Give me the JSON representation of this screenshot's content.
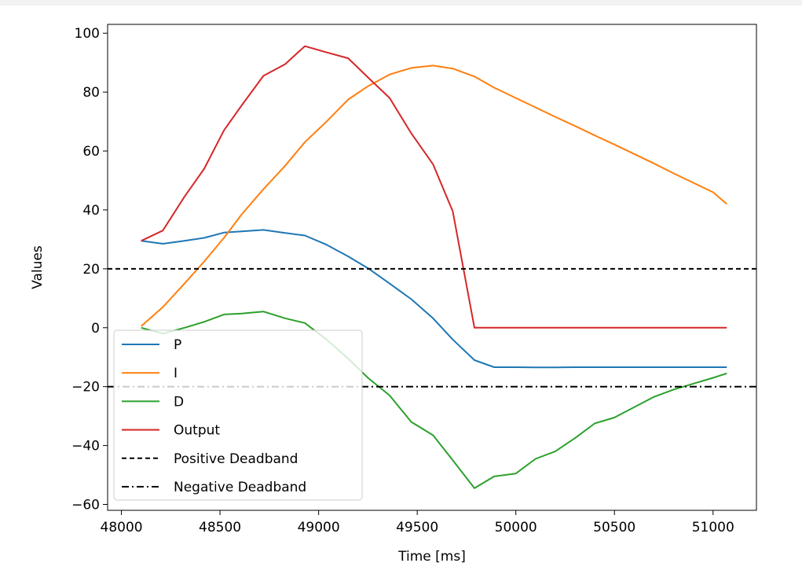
{
  "chart_data": {
    "type": "line",
    "title": "",
    "xlabel": "Time [ms]",
    "ylabel": "Values",
    "xlim": [
      47930,
      51220
    ],
    "ylim": [
      -62,
      103
    ],
    "xticks": [
      48000,
      48500,
      49000,
      49500,
      50000,
      50500,
      51000
    ],
    "yticks": [
      -60,
      -40,
      -20,
      0,
      20,
      40,
      60,
      80,
      100
    ],
    "xtick_labels": [
      "48000",
      "48500",
      "49000",
      "49500",
      "50000",
      "50500",
      "51000"
    ],
    "ytick_labels": [
      "−60",
      "−40",
      "−20",
      "0",
      "20",
      "40",
      "60",
      "80",
      "100"
    ],
    "grid": false,
    "legend_position": "lower left",
    "series": [
      {
        "name": "P",
        "color": "#1f77b4",
        "dash": "solid",
        "x": [
          48100,
          48210,
          48320,
          48420,
          48520,
          48610,
          48720,
          48830,
          48930,
          49040,
          49150,
          49250,
          49360,
          49470,
          49580,
          49680,
          49790,
          49890,
          50000,
          50100,
          50200,
          50300,
          50400,
          50500,
          50600,
          50700,
          50800,
          50900,
          51000,
          51070
        ],
        "y": [
          29.5,
          28.5,
          29.5,
          30.5,
          32.3,
          32.7,
          33.2,
          32.2,
          31.3,
          28.2,
          24.2,
          20.2,
          15,
          9.7,
          3.2,
          -4,
          -11,
          -13.4,
          -13.4,
          -13.5,
          -13.5,
          -13.4,
          -13.4,
          -13.4,
          -13.4,
          -13.4,
          -13.4,
          -13.4,
          -13.4,
          -13.4
        ]
      },
      {
        "name": "I",
        "color": "#ff7f0e",
        "dash": "solid",
        "x": [
          48100,
          48210,
          48320,
          48420,
          48520,
          48610,
          48720,
          48830,
          48930,
          49040,
          49150,
          49250,
          49360,
          49470,
          49580,
          49680,
          49790,
          49890,
          50000,
          50100,
          50200,
          50300,
          50400,
          50500,
          50600,
          50700,
          50800,
          50900,
          51000,
          51070
        ],
        "y": [
          0.5,
          7,
          15,
          22.5,
          30.5,
          38.5,
          47,
          55,
          63,
          70,
          77.5,
          82,
          86,
          88.2,
          89,
          88,
          85.3,
          81.5,
          78,
          74.8,
          71.6,
          68.5,
          65.3,
          62.2,
          59,
          55.8,
          52.4,
          49.2,
          46,
          42
        ]
      },
      {
        "name": "D",
        "color": "#2ca02c",
        "dash": "solid",
        "x": [
          48100,
          48210,
          48320,
          48420,
          48520,
          48610,
          48720,
          48830,
          48930,
          49040,
          49150,
          49250,
          49360,
          49470,
          49580,
          49680,
          49790,
          49890,
          50000,
          50100,
          50200,
          50300,
          50400,
          50500,
          50600,
          50700,
          50800,
          50900,
          51000,
          51070
        ],
        "y": [
          0,
          -2,
          0,
          2,
          4.5,
          4.8,
          5.5,
          3.2,
          1.6,
          -4,
          -10.5,
          -17,
          -23,
          -32,
          -36.5,
          -45,
          -54.5,
          -50.5,
          -49.5,
          -44.5,
          -42,
          -37.5,
          -32.5,
          -30.5,
          -27,
          -23.5,
          -21,
          -19,
          -17,
          -15.5
        ]
      },
      {
        "name": "Output",
        "color": "#d62728",
        "dash": "solid",
        "x": [
          48100,
          48210,
          48320,
          48420,
          48520,
          48610,
          48720,
          48830,
          48930,
          49040,
          49150,
          49250,
          49360,
          49470,
          49580,
          49680,
          49790,
          49890,
          50000,
          50100,
          50200,
          50300,
          50400,
          50500,
          50600,
          50700,
          50800,
          50900,
          51000,
          51070
        ],
        "y": [
          29.5,
          33,
          44.5,
          54,
          67,
          75.5,
          85.5,
          89.5,
          95.6,
          93.5,
          91.5,
          85,
          78,
          66,
          55.5,
          39.5,
          0,
          0,
          0,
          0,
          0,
          0,
          0,
          0,
          0,
          0,
          0,
          0,
          0,
          0
        ]
      },
      {
        "name": "Positive Deadband",
        "color": "#000000",
        "dash": "dashed",
        "x": [
          47930,
          51220
        ],
        "y": [
          20,
          20
        ]
      },
      {
        "name": "Negative Deadband",
        "color": "#000000",
        "dash": "dashdot",
        "x": [
          47930,
          51220
        ],
        "y": [
          -20,
          -20
        ]
      }
    ]
  }
}
